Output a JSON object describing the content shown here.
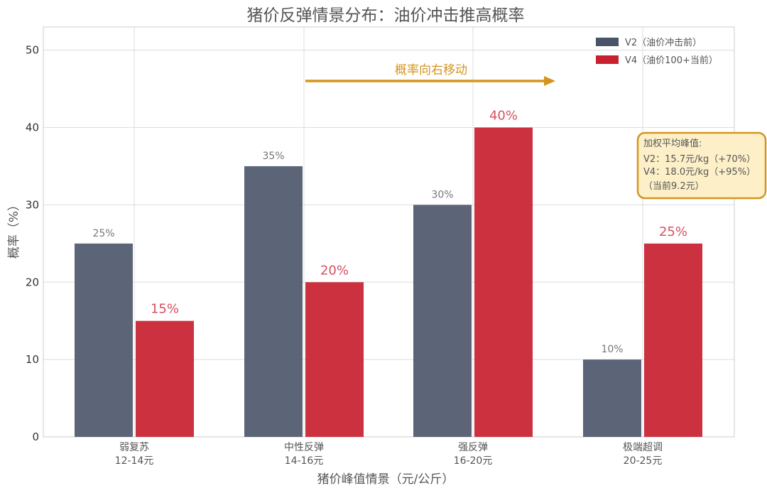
{
  "chart_data": {
    "type": "bar",
    "title": "猪价反弹情景分布：油价冲击推高概率",
    "xlabel": "猪价峰值情景（元/公斤）",
    "ylabel": "概率（%）",
    "ylim": [
      0,
      53
    ],
    "yticks": [
      0,
      10,
      20,
      30,
      40,
      50
    ],
    "grid": true,
    "legend_position": "top-right",
    "categories": [
      {
        "name": "弱复苏",
        "range": "12-14元"
      },
      {
        "name": "中性反弹",
        "range": "14-16元"
      },
      {
        "name": "强反弹",
        "range": "16-20元"
      },
      {
        "name": "极端超调",
        "range": "20-25元"
      }
    ],
    "series": [
      {
        "name": "V2（油价冲击前）",
        "values": [
          25,
          35,
          30,
          10
        ],
        "labels": [
          "25%",
          "35%",
          "30%",
          "10%"
        ],
        "color": "#4a5468"
      },
      {
        "name": "V4（油价100+当前）",
        "values": [
          15,
          20,
          40,
          25
        ],
        "labels": [
          "15%",
          "20%",
          "40%",
          "25%"
        ],
        "color": "#c8202f"
      }
    ],
    "annotation_arrow": {
      "text": "概率向右移动",
      "color": "#d4951e"
    },
    "annotation_box": {
      "lines": [
        "加权平均峰值:",
        "V2：15.7元/kg（+70%）",
        "V4：18.0元/kg（+95%）",
        "（当前9.2元）"
      ],
      "fill": "#fdf0c8",
      "border": "#d4951e"
    }
  }
}
